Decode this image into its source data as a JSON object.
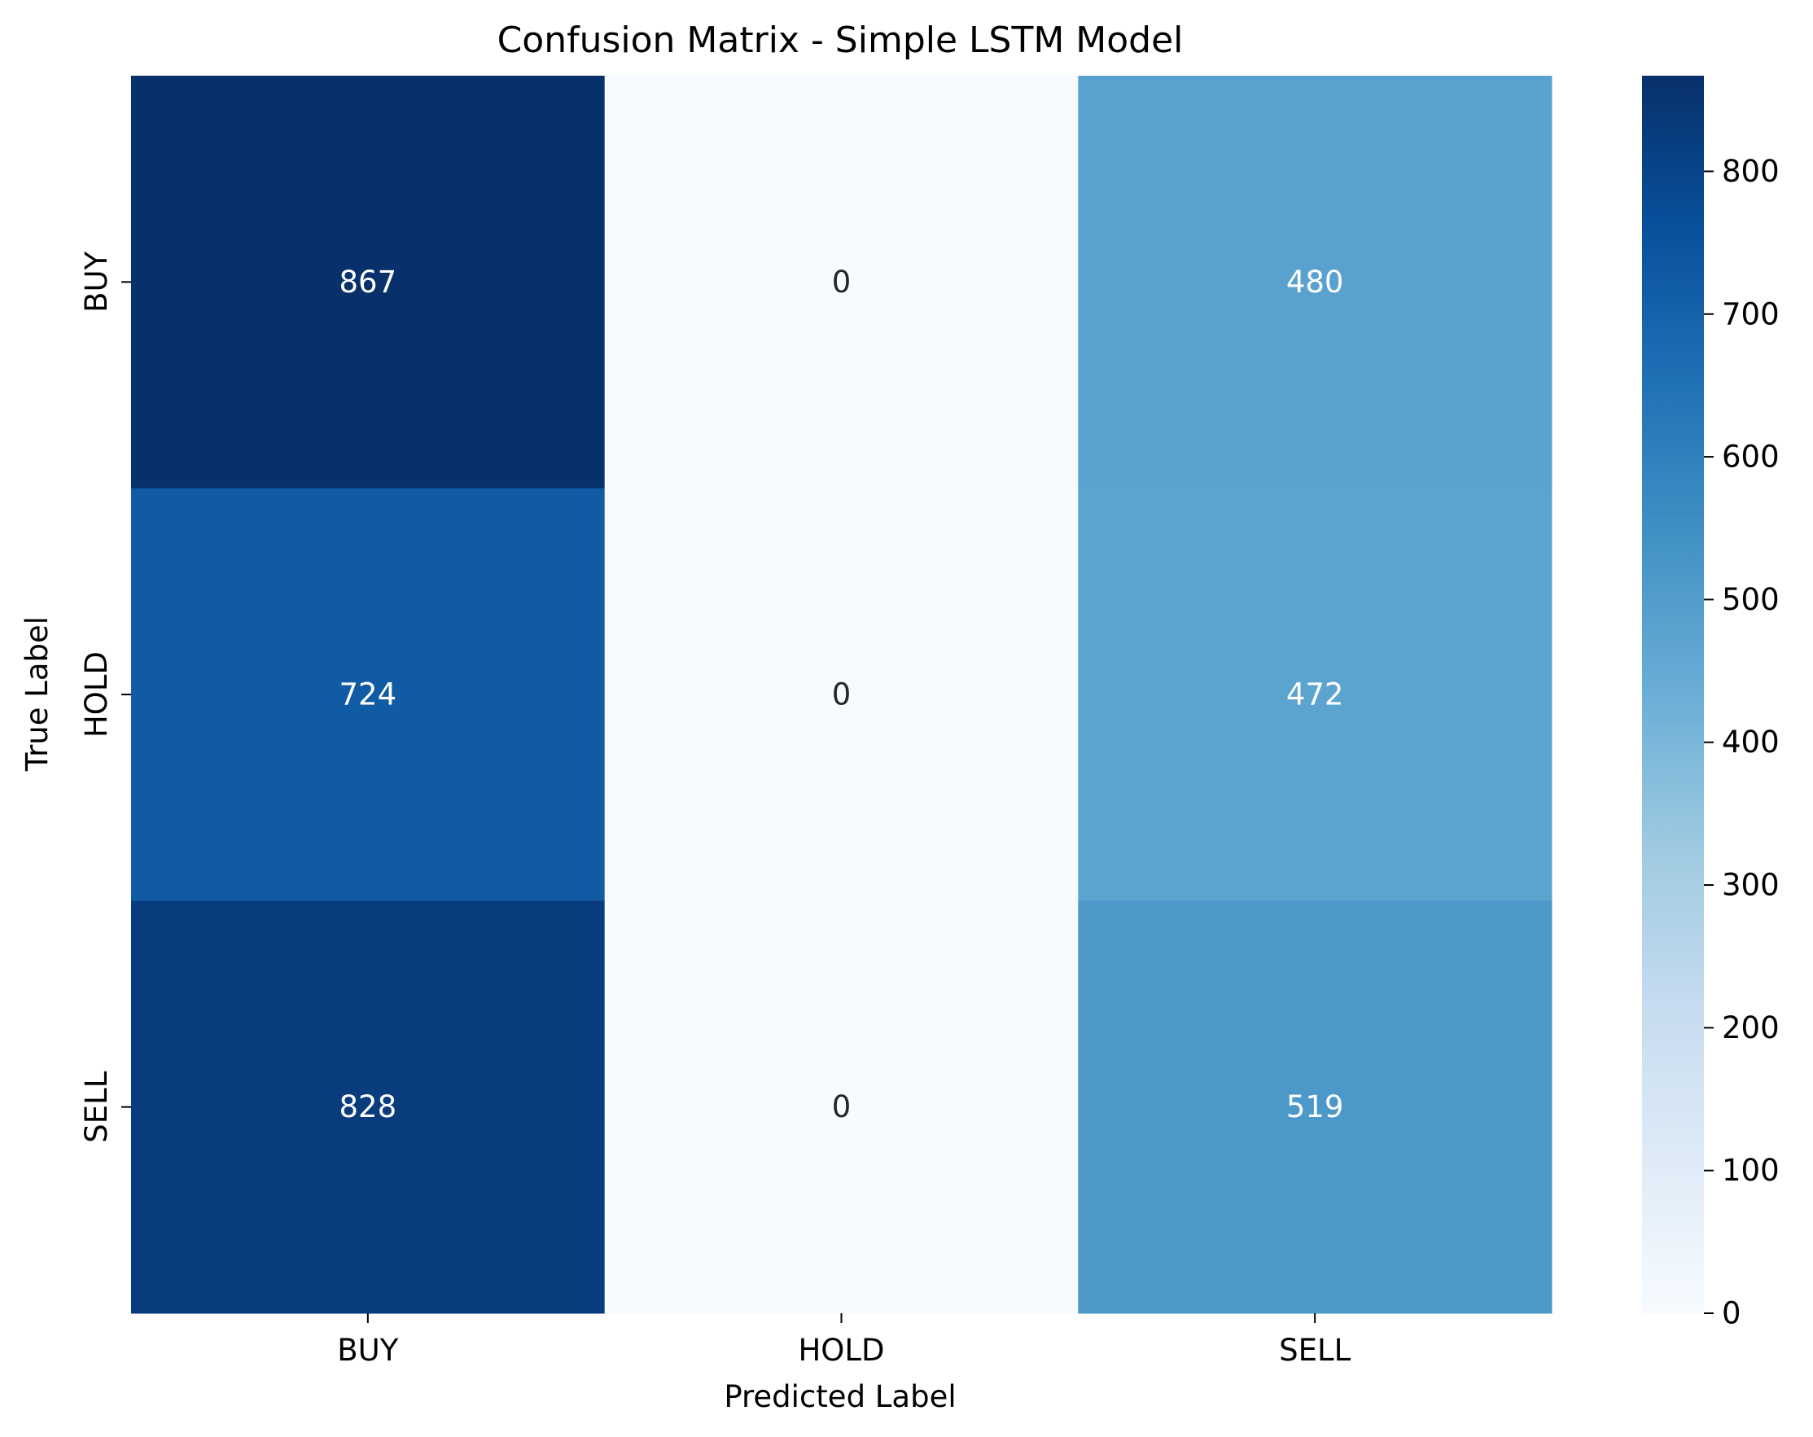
{
  "chart_data": {
    "type": "heatmap",
    "title": "Confusion Matrix - Simple LSTM Model",
    "xlabel": "Predicted Label",
    "ylabel": "True Label",
    "x_categories": [
      "BUY",
      "HOLD",
      "SELL"
    ],
    "y_categories": [
      "BUY",
      "HOLD",
      "SELL"
    ],
    "values": [
      [
        867,
        0,
        480
      ],
      [
        724,
        0,
        472
      ],
      [
        828,
        0,
        519
      ]
    ],
    "colormap": "Blues",
    "color_range": [
      0,
      867
    ],
    "colorbar_ticks": [
      "0",
      "100",
      "200",
      "300",
      "400",
      "500",
      "600",
      "700",
      "800"
    ],
    "grid": false,
    "legend": "colorbar-right"
  }
}
